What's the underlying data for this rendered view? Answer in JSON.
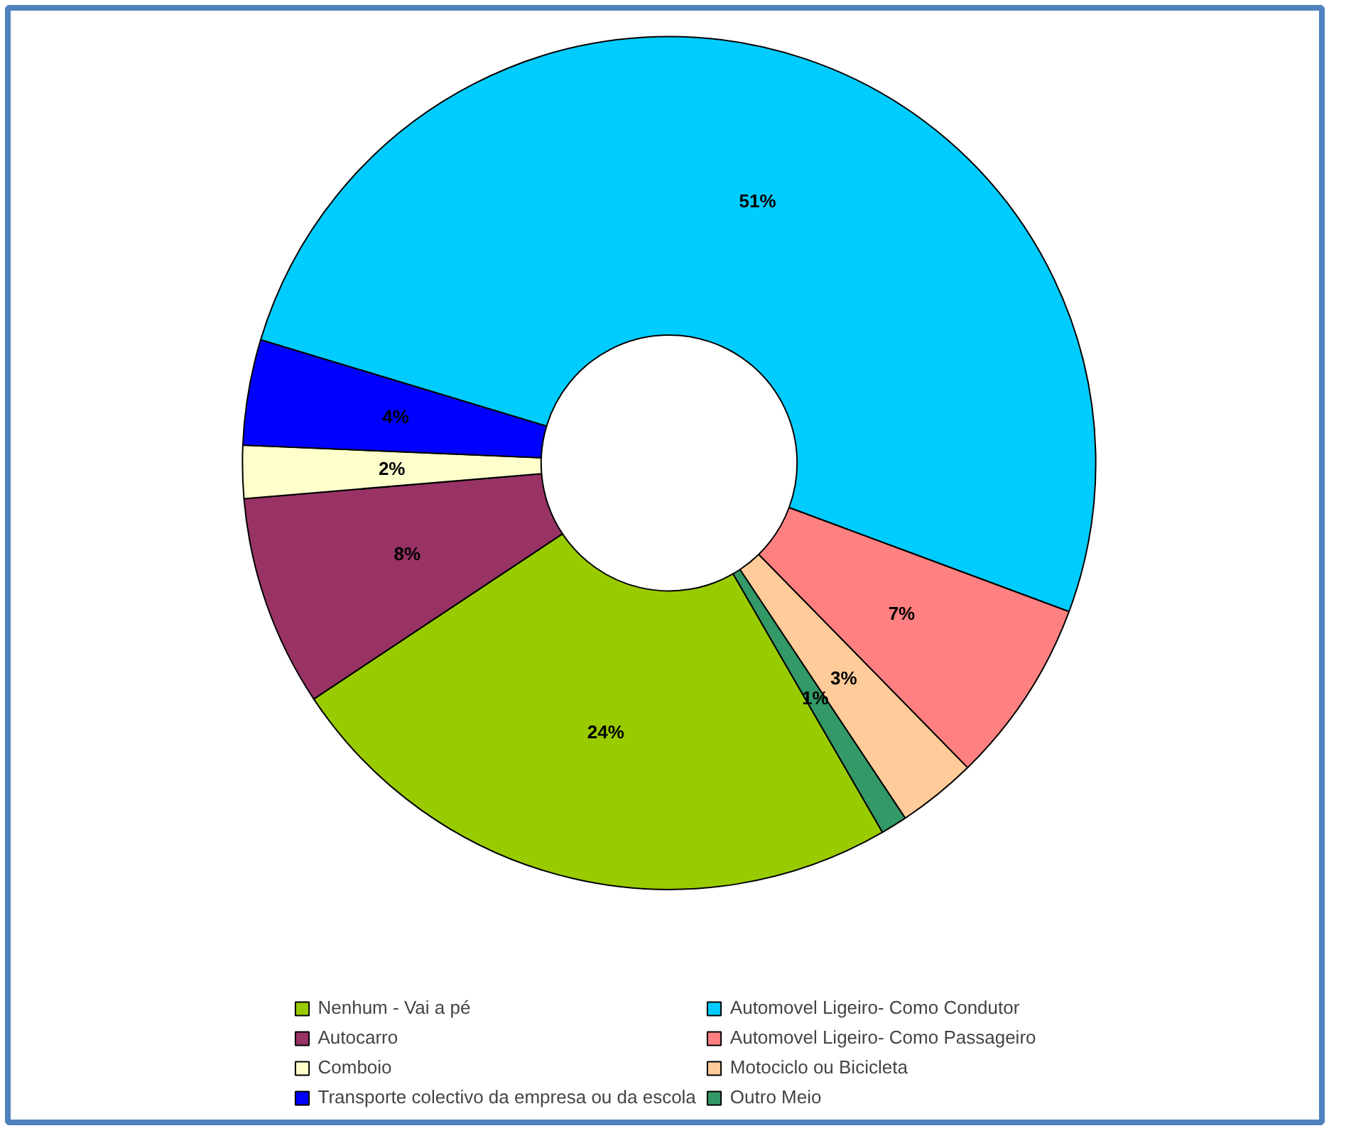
{
  "chart_data": {
    "type": "donut",
    "categories": [
      "Nenhum - Vai a pé",
      "Autocarro",
      "Comboio",
      "Transporte colectivo da empresa ou da escola",
      "Automovel Ligeiro- Como Condutor",
      "Automovel Ligeiro- Como Passageiro",
      "Motociclo ou Bicicleta",
      "Outro Meio"
    ],
    "values": [
      24,
      8,
      2,
      4,
      51,
      7,
      3,
      1
    ],
    "colors": [
      "#99cc00",
      "#993366",
      "#ffffcc",
      "#0000ff",
      "#00ccff",
      "#ff8080",
      "#ffcc99",
      "#339966"
    ],
    "value_labels": [
      "24%",
      "8%",
      "2%",
      "4%",
      "51%",
      "7%",
      "3%",
      "1%"
    ],
    "legend": "bottom"
  }
}
